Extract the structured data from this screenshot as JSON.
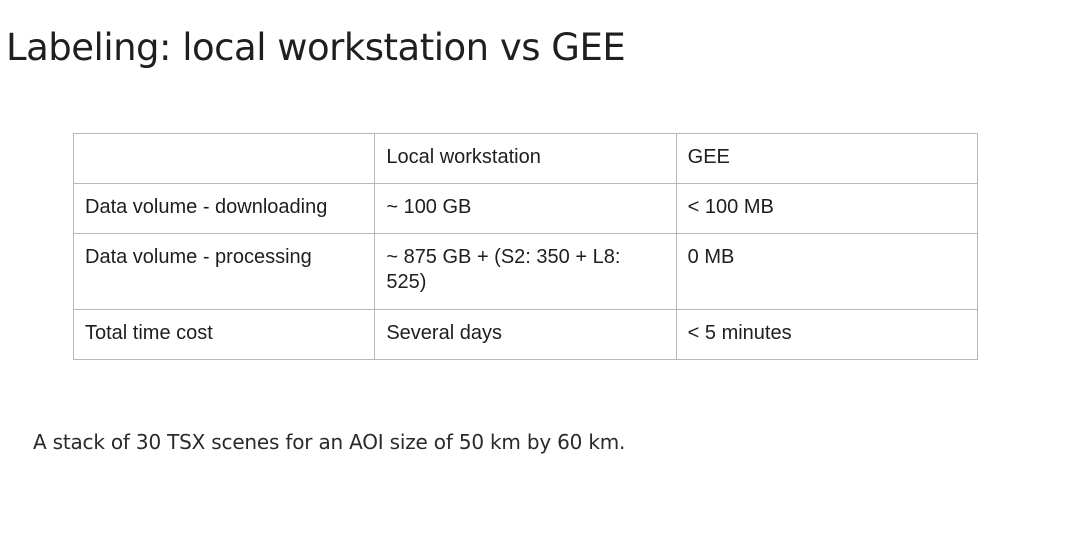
{
  "title": "Labeling: local workstation vs GEE",
  "table": {
    "header": [
      "",
      "Local workstation",
      "GEE"
    ],
    "rows": [
      [
        "Data volume - downloading",
        "~ 100 GB",
        "< 100 MB"
      ],
      [
        "Data volume - processing",
        "~ 875 GB + (S2: 350 + L8: 525)",
        "0 MB"
      ],
      [
        "Total time cost",
        "Several days",
        "< 5 minutes"
      ]
    ]
  },
  "footnote": "A stack of 30 TSX scenes for an AOI size of 50 km by 60 km."
}
